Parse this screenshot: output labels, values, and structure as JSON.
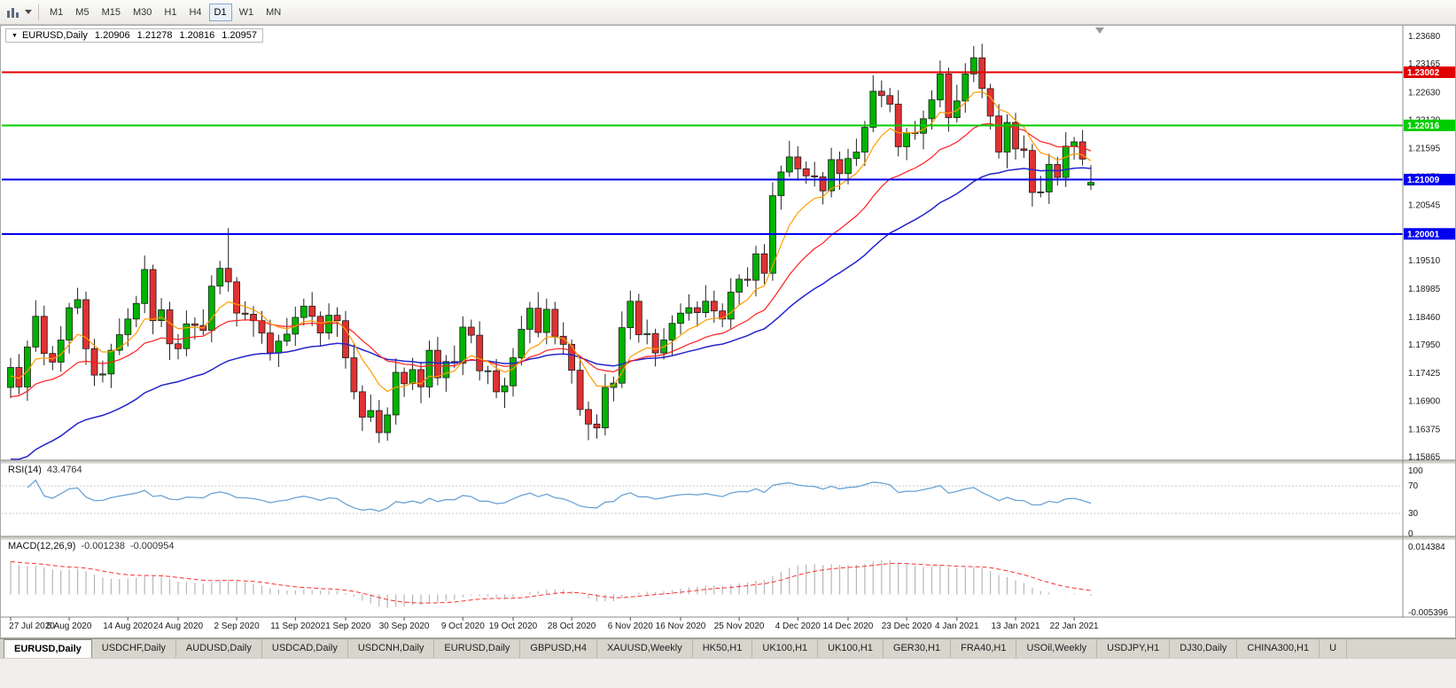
{
  "toolbar": {
    "timeframes": [
      {
        "label": "M1",
        "active": false
      },
      {
        "label": "M5",
        "active": false
      },
      {
        "label": "M15",
        "active": false
      },
      {
        "label": "M30",
        "active": false
      },
      {
        "label": "H1",
        "active": false
      },
      {
        "label": "H4",
        "active": false
      },
      {
        "label": "D1",
        "active": true
      },
      {
        "label": "W1",
        "active": false
      },
      {
        "label": "MN",
        "active": false
      }
    ]
  },
  "chart": {
    "title": {
      "symbol": "EURUSD,Daily",
      "open": "1.20906",
      "high": "1.21278",
      "low": "1.20816",
      "close": "1.20957"
    },
    "ylim": [
      1.158,
      1.2385
    ],
    "price_scale_labels": [
      "1.23680",
      "1.23165",
      "1.22630",
      "1.22120",
      "1.21595",
      "1.21070",
      "1.20545",
      "1.20020",
      "1.19510",
      "1.18985",
      "1.18460",
      "1.17950",
      "1.17425",
      "1.16900",
      "1.16375",
      "1.15865"
    ],
    "level_lines": [
      {
        "price": 1.23002,
        "label": "1.23002",
        "color": "#e00000"
      },
      {
        "price": 1.22016,
        "label": "1.22016",
        "color": "#00cc00"
      },
      {
        "price": 1.21009,
        "label": "1.21009",
        "color": "#0000ee"
      },
      {
        "price": 1.20001,
        "label": "1.20001",
        "color": "#0000ee"
      }
    ],
    "colors": {
      "bull": "#00b400",
      "bear": "#e03232",
      "wick": "#202020",
      "ma_fast": "#ff9d00",
      "ma_mid": "#ff1f1f",
      "ma_slow": "#2424cc",
      "rsi": "#6ba3d6",
      "macd_hist": "#b6b6b6",
      "macd_signal": "#ff2d2d"
    },
    "x_axis": [
      {
        "i": 0,
        "label": "27 Jul 2020"
      },
      {
        "i": 7,
        "label": "5 Aug 2020"
      },
      {
        "i": 14,
        "label": "14 Aug 2020"
      },
      {
        "i": 20,
        "label": "24 Aug 2020"
      },
      {
        "i": 27,
        "label": "2 Sep 2020"
      },
      {
        "i": 34,
        "label": "11 Sep 2020"
      },
      {
        "i": 40,
        "label": "21 Sep 2020"
      },
      {
        "i": 47,
        "label": "30 Sep 2020"
      },
      {
        "i": 54,
        "label": "9 Oct 2020"
      },
      {
        "i": 60,
        "label": "19 Oct 2020"
      },
      {
        "i": 67,
        "label": "28 Oct 2020"
      },
      {
        "i": 74,
        "label": "6 Nov 2020"
      },
      {
        "i": 80,
        "label": "16 Nov 2020"
      },
      {
        "i": 87,
        "label": "25 Nov 2020"
      },
      {
        "i": 94,
        "label": "4 Dec 2020"
      },
      {
        "i": 100,
        "label": "14 Dec 2020"
      },
      {
        "i": 107,
        "label": "23 Dec 2020"
      },
      {
        "i": 113,
        "label": "4 Jan 2021"
      },
      {
        "i": 120,
        "label": "13 Jan 2021"
      },
      {
        "i": 127,
        "label": "22 Jan 2021"
      }
    ],
    "rsi_panel": {
      "name": "RSI(14)",
      "value": "43.4764",
      "scale": [
        "100",
        "70",
        "30",
        "0"
      ],
      "levels": [
        70,
        30
      ]
    },
    "macd_panel": {
      "name": "MACD(12,26,9)",
      "value_main": "-0.001238",
      "value_signal": "-0.000954",
      "scale_top": "0.014384",
      "scale_bottom": "-0.005396",
      "ylim": [
        -0.005396,
        0.014384
      ]
    }
  },
  "chart_data": {
    "type": "candlestick",
    "symbol": "EURUSD",
    "timeframe": "Daily",
    "title": "EURUSD,Daily with RSI(14) and MACD(12,26,9)",
    "current_bar": {
      "open": 1.20906,
      "high": 1.21278,
      "low": 1.20816,
      "close": 1.20957
    },
    "first_open": 1.1715,
    "closes": [
      1.1752,
      1.1716,
      1.179,
      1.1847,
      1.1778,
      1.1762,
      1.1803,
      1.1863,
      1.1878,
      1.1787,
      1.1738,
      1.174,
      1.1784,
      1.1813,
      1.1842,
      1.1871,
      1.1934,
      1.1839,
      1.1859,
      1.1796,
      1.1787,
      1.1833,
      1.183,
      1.1821,
      1.1903,
      1.1936,
      1.1911,
      1.1853,
      1.1851,
      1.1839,
      1.1816,
      1.1779,
      1.1801,
      1.1814,
      1.1845,
      1.1866,
      1.1847,
      1.1816,
      1.1849,
      1.1839,
      1.177,
      1.1707,
      1.166,
      1.1672,
      1.1631,
      1.1664,
      1.1743,
      1.1722,
      1.1748,
      1.1716,
      1.1784,
      1.1733,
      1.1763,
      1.176,
      1.1827,
      1.1812,
      1.1746,
      1.1746,
      1.1707,
      1.1718,
      1.177,
      1.1823,
      1.1862,
      1.1817,
      1.186,
      1.181,
      1.1795,
      1.1747,
      1.1674,
      1.1647,
      1.164,
      1.1715,
      1.1723,
      1.1826,
      1.1875,
      1.1813,
      1.1815,
      1.1779,
      1.1803,
      1.1834,
      1.1853,
      1.1863,
      1.1854,
      1.1875,
      1.1857,
      1.1842,
      1.1892,
      1.1916,
      1.1914,
      1.1963,
      1.1927,
      1.2071,
      1.2115,
      1.2143,
      1.2121,
      1.2108,
      1.2106,
      1.208,
      1.2138,
      1.2112,
      1.214,
      1.2152,
      1.2198,
      1.2265,
      1.2257,
      1.2241,
      1.2162,
      1.2188,
      1.2187,
      1.2214,
      1.2249,
      1.2297,
      1.2216,
      1.2247,
      1.2297,
      1.2327,
      1.227,
      1.2219,
      1.2152,
      1.2207,
      1.2158,
      1.2155,
      1.2077,
      1.2078,
      1.2129,
      1.2105,
      1.2163,
      1.2171,
      1.2139,
      1.2096
    ],
    "wick_pattern": [
      18,
      25,
      12,
      30,
      20,
      14,
      26,
      9,
      22,
      15
    ],
    "overrides": {
      "26": {
        "h": 1.2011
      },
      "44": {
        "l": 1.1612
      },
      "115": {
        "h": 1.2349
      },
      "129": {
        "o": 1.20906,
        "h": 1.21278,
        "l": 1.20816,
        "c": 1.20957
      }
    },
    "indicators": {
      "ma_fast_period": 8,
      "ma_mid_period": 20,
      "ma_slow_period": 40,
      "rsi_period": 14,
      "macd": [
        12,
        26,
        9
      ]
    }
  },
  "tabs": [
    "EURUSD,Daily",
    "USDCHF,Daily",
    "AUDUSD,Daily",
    "USDCAD,Daily",
    "USDCNH,Daily",
    "EURUSD,Daily",
    "GBPUSD,H4",
    "XAUUSD,Weekly",
    "HK50,H1",
    "UK100,H1",
    "UK100,H1",
    "GER30,H1",
    "FRA40,H1",
    "USOil,Weekly",
    "USDJPY,H1",
    "DJ30,Daily",
    "CHINA300,H1",
    "U"
  ],
  "active_tab_index": 0
}
